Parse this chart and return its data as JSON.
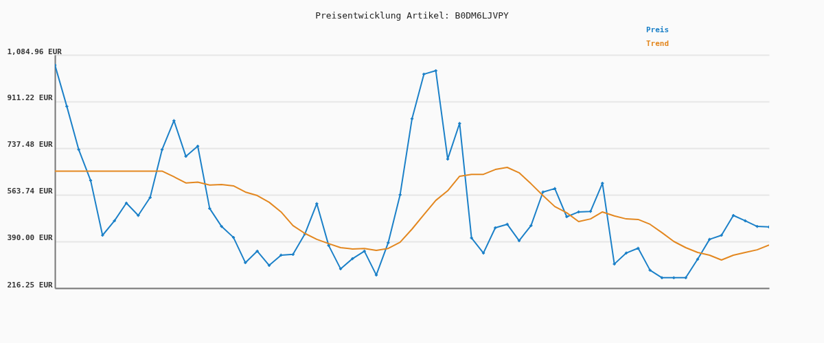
{
  "chart_data": {
    "type": "line",
    "title": "Preisentwicklung Artikel: B0DM6LJVPY",
    "categories": [
      null,
      null,
      null,
      null,
      null,
      null,
      null,
      null,
      null,
      null,
      null,
      null,
      null,
      null,
      null,
      null,
      null,
      null,
      null,
      null,
      null,
      null,
      null,
      null,
      null,
      null,
      null,
      null,
      null,
      null,
      null,
      null,
      null,
      null,
      null,
      null,
      null,
      null,
      null,
      null,
      null,
      null,
      null,
      null,
      null,
      null,
      null,
      null,
      null,
      null,
      null,
      null,
      null,
      null,
      null,
      null,
      null,
      null,
      null,
      null,
      null
    ],
    "series": [
      {
        "name": "Preis",
        "color": "#1b80c8",
        "marker": "cross",
        "values": [
          1047,
          893,
          732,
          617,
          413,
          467,
          533,
          487,
          554,
          732,
          840,
          707,
          745,
          513,
          446,
          405,
          311,
          354,
          301,
          339,
          342,
          418,
          531,
          375,
          288,
          326,
          354,
          265,
          385,
          564,
          847,
          1013,
          1026,
          697,
          830,
          403,
          347,
          441,
          454,
          393,
          449,
          574,
          587,
          482,
          500,
          502,
          607,
          306,
          347,
          365,
          283,
          255,
          255,
          255,
          324,
          398,
          413,
          487,
          467,
          446,
          444
        ]
      },
      {
        "name": "Trend",
        "color": "#e3871f",
        "values": [
          652,
          652,
          652,
          652,
          652,
          652,
          652,
          652,
          652,
          652,
          631,
          608,
          611,
          600,
          602,
          597,
          574,
          561,
          536,
          500,
          449,
          420,
          398,
          382,
          367,
          362,
          364,
          357,
          364,
          387,
          436,
          490,
          543,
          579,
          633,
          640,
          640,
          658,
          666,
          646,
          605,
          561,
          520,
          497,
          464,
          474,
          500,
          485,
          474,
          472,
          454,
          423,
          390,
          367,
          349,
          339,
          321,
          339,
          349,
          359,
          377
        ]
      }
    ],
    "ylim": [
      216.25,
      1084.96
    ],
    "yticks": [
      {
        "value": 216.25,
        "label": "216.25 EUR"
      },
      {
        "value": 390.0,
        "label": "390.00 EUR"
      },
      {
        "value": 563.74,
        "label": "563.74 EUR"
      },
      {
        "value": 737.48,
        "label": "737.48 EUR"
      },
      {
        "value": 911.22,
        "label": "911.22 EUR"
      },
      {
        "value": 1084.96,
        "label": "1,084.96 EUR"
      }
    ],
    "grid": "y",
    "legend": "top right",
    "tick_labels": "y"
  }
}
